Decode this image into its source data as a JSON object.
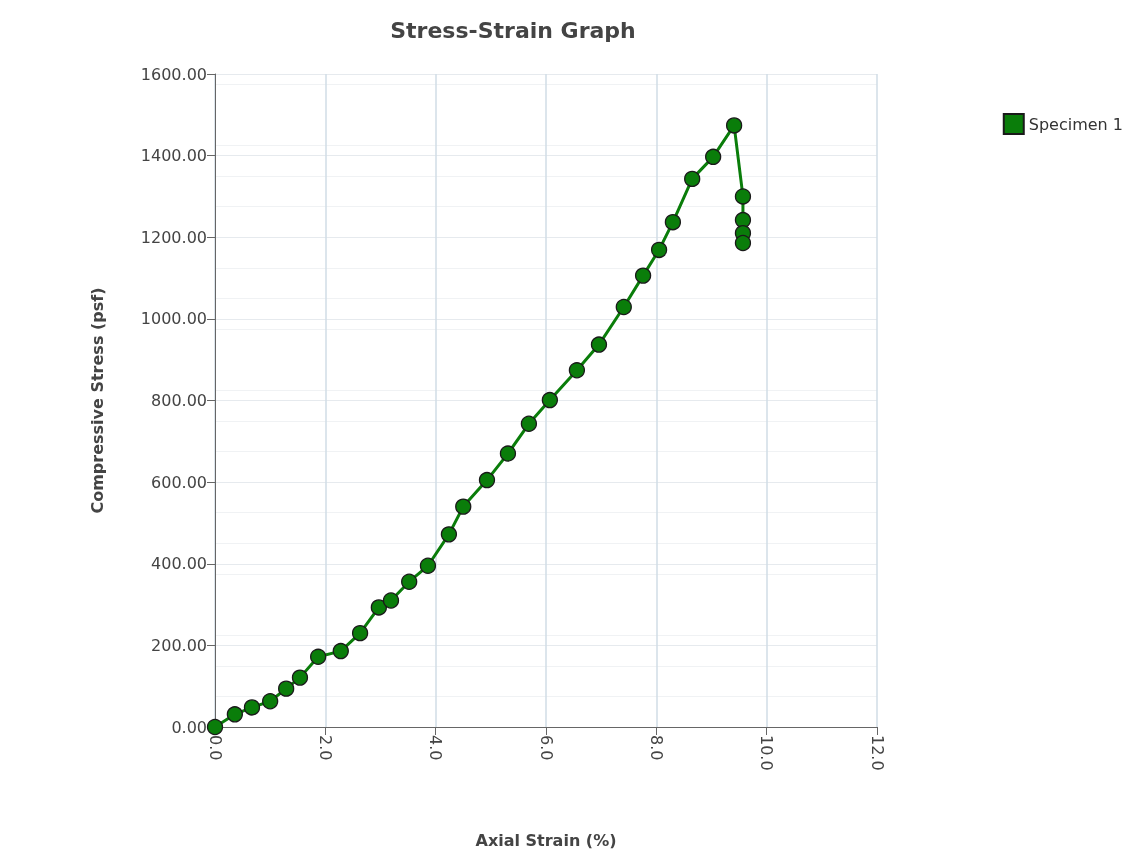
{
  "chart_data": {
    "type": "line",
    "title": "Stress-Strain Graph",
    "xlabel": "Axial Strain (%)",
    "ylabel": "Compressive Stress (psf)",
    "xlim": [
      0,
      12
    ],
    "xticks": [
      {
        "value": 0,
        "label": "0.0"
      },
      {
        "value": 2,
        "label": "2.0"
      },
      {
        "value": 4,
        "label": "4.0"
      },
      {
        "value": 6,
        "label": "6.0"
      },
      {
        "value": 8,
        "label": "8.0"
      },
      {
        "value": 10,
        "label": "10.0"
      },
      {
        "value": 12,
        "label": "12.0"
      }
    ],
    "ylim": [
      0,
      1600
    ],
    "yticks": [
      {
        "value": 0,
        "label": "0.00"
      },
      {
        "value": 200,
        "label": "200.00"
      },
      {
        "value": 400,
        "label": "400.00"
      },
      {
        "value": 600,
        "label": "600.00"
      },
      {
        "value": 800,
        "label": "800.00"
      },
      {
        "value": 1000,
        "label": "1000.00"
      },
      {
        "value": 1200,
        "label": "1200.00"
      },
      {
        "value": 1400,
        "label": "1400.00"
      },
      {
        "value": 1600,
        "label": "1600.00"
      }
    ],
    "grid": true,
    "legend": "top right",
    "marker": "circle",
    "line_style": "solid",
    "series": [
      {
        "name": "Specimen 1",
        "color": "#0a7d0a",
        "x": [
          0,
          0.36,
          0.67,
          1.0,
          1.29,
          1.54,
          1.87,
          2.28,
          2.63,
          2.97,
          3.19,
          3.52,
          3.86,
          4.24,
          4.5,
          4.93,
          5.31,
          5.69,
          6.07,
          6.56,
          6.96,
          7.41,
          7.76,
          8.05,
          8.3,
          8.65,
          9.03,
          9.41,
          9.57,
          9.57,
          9.57,
          9.57
        ],
        "values": [
          0,
          31,
          48,
          63,
          94,
          121,
          172,
          186,
          230,
          293,
          310,
          356,
          395,
          472,
          540,
          605,
          670,
          743,
          801,
          874,
          937,
          1029,
          1106,
          1169,
          1237,
          1343,
          1397,
          1474,
          1300,
          1242,
          1210,
          1186
        ]
      }
    ]
  }
}
